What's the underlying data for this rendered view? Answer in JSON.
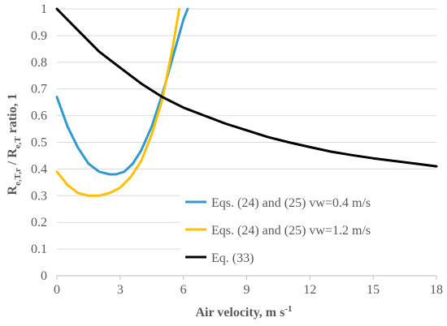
{
  "chart_data": {
    "type": "line",
    "xlabel": "Air velocity,  m s",
    "xlabel_sup": "-1",
    "ylabel": "R",
    "ylabel_sub1": "e,T,r",
    "ylabel_mid": " / R",
    "ylabel_sub2": "e,T",
    "ylabel_tail": " ratio, 1",
    "xlim": [
      0,
      18
    ],
    "ylim": [
      0,
      1
    ],
    "x_ticks": [
      "0",
      "3",
      "6",
      "9",
      "12",
      "15",
      "18"
    ],
    "y_ticks": [
      "0",
      "0.1",
      "0.2",
      "0.3",
      "0.4",
      "0.5",
      "0.6",
      "0.7",
      "0.8",
      "0.9",
      "1"
    ],
    "grid": "horizontal",
    "legend_position": "bottom-right",
    "series": [
      {
        "name": "Eqs. (24) and (25) vw=0.4 m/s",
        "color": "#2E9AD0",
        "x": [
          0,
          0.5,
          1,
          1.5,
          2,
          2.5,
          2.8,
          3.2,
          3.6,
          4,
          4.5,
          5,
          5.5,
          6,
          6.2
        ],
        "y": [
          0.67,
          0.56,
          0.48,
          0.42,
          0.39,
          0.38,
          0.38,
          0.39,
          0.42,
          0.47,
          0.56,
          0.68,
          0.82,
          0.96,
          1.0
        ]
      },
      {
        "name": "Eqs. (24) and (25) vw=1.2 m/s",
        "color": "#FFC000",
        "x": [
          0,
          0.5,
          1,
          1.5,
          2,
          2.5,
          3,
          3.5,
          4,
          4.5,
          5,
          5.5,
          5.8
        ],
        "y": [
          0.39,
          0.34,
          0.31,
          0.3,
          0.3,
          0.31,
          0.33,
          0.37,
          0.43,
          0.53,
          0.66,
          0.86,
          1.0
        ]
      },
      {
        "name": "Eq. (33)",
        "color": "#000000",
        "x": [
          0,
          1,
          2,
          3,
          4,
          5,
          6,
          7,
          8,
          9,
          10,
          11,
          12,
          13,
          14,
          15,
          16,
          17,
          18
        ],
        "y": [
          1.0,
          0.92,
          0.84,
          0.78,
          0.72,
          0.67,
          0.63,
          0.6,
          0.57,
          0.545,
          0.52,
          0.5,
          0.482,
          0.465,
          0.452,
          0.44,
          0.43,
          0.42,
          0.41
        ]
      }
    ]
  }
}
